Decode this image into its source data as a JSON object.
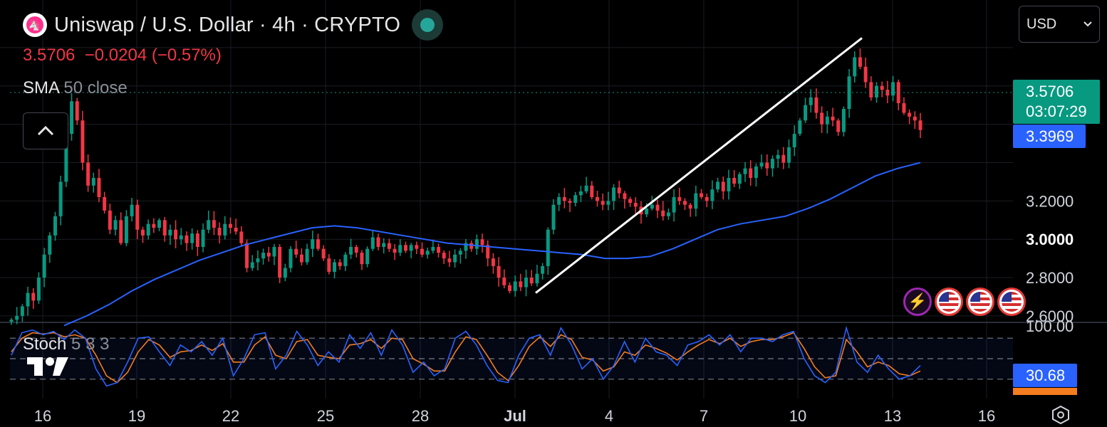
{
  "header": {
    "logo_glyph": "🦄",
    "title": "Uniswap / U.S. Dollar · 4h · CRYPTO",
    "last_price": "3.5706",
    "change": "−0.0204 (−0.57%)",
    "change_color": "#f23645"
  },
  "indicators": {
    "sma_name": "SMA",
    "sma_params": "50 close",
    "stoch_name": "Stoch",
    "stoch_params": "5 3 3"
  },
  "currency_select": {
    "value": "USD"
  },
  "price_tags": {
    "current_price": "3.5706",
    "countdown": "03:07:29",
    "sma_value": "3.3969",
    "stoch_k_value": "30.68"
  },
  "colors": {
    "up": "#089981",
    "down": "#f23645",
    "sma": "#2962ff",
    "stoch_k": "#2962ff",
    "stoch_d": "#f57c1f",
    "trendline": "#ffffff",
    "grid": "#1b1d24"
  },
  "chart_data": {
    "type": "candlestick",
    "title": "Uniswap / U.S. Dollar · 4h · CRYPTO",
    "timeframe": "4h",
    "x_tick_labels": [
      "16",
      "19",
      "22",
      "25",
      "28",
      "Jul",
      "4",
      "7",
      "10",
      "13",
      "16"
    ],
    "y_tick_labels": [
      "3.2000",
      "3.0000",
      "2.8000",
      "2.6000"
    ],
    "y_range": [
      2.57,
      4.1
    ],
    "grid": true,
    "candles_close": [
      2.58,
      2.6,
      2.65,
      2.72,
      2.68,
      2.8,
      2.92,
      3.02,
      3.12,
      3.3,
      3.55,
      3.72,
      3.62,
      3.4,
      3.28,
      3.32,
      3.22,
      3.15,
      3.05,
      3.1,
      2.98,
      3.12,
      3.18,
      3.05,
      3.02,
      3.08,
      3.06,
      3.1,
      3.02,
      3.05,
      3.0,
      3.02,
      2.98,
      3.03,
      2.96,
      3.05,
      3.1,
      3.06,
      3.02,
      3.08,
      3.06,
      3.04,
      2.98,
      2.85,
      2.88,
      2.9,
      2.93,
      2.91,
      2.96,
      2.8,
      2.85,
      2.95,
      2.92,
      2.88,
      2.95,
      3.0,
      2.95,
      2.9,
      2.83,
      2.88,
      2.86,
      2.92,
      2.96,
      2.93,
      2.87,
      2.95,
      3.01,
      2.96,
      2.98,
      2.95,
      2.93,
      2.97,
      2.94,
      2.97,
      2.95,
      2.92,
      2.94,
      2.96,
      2.93,
      2.9,
      2.88,
      2.92,
      2.94,
      2.98,
      2.95,
      3.0,
      2.97,
      2.9,
      2.86,
      2.8,
      2.76,
      2.73,
      2.78,
      2.75,
      2.8,
      2.77,
      2.82,
      2.86,
      3.05,
      3.18,
      3.22,
      3.2,
      3.19,
      3.23,
      3.25,
      3.28,
      3.22,
      3.2,
      3.18,
      3.2,
      3.27,
      3.24,
      3.21,
      3.19,
      3.17,
      3.13,
      3.16,
      3.18,
      3.15,
      3.12,
      3.14,
      3.22,
      3.2,
      3.18,
      3.16,
      3.24,
      3.22,
      3.2,
      3.26,
      3.3,
      3.25,
      3.32,
      3.29,
      3.34,
      3.37,
      3.32,
      3.38,
      3.4,
      3.37,
      3.42,
      3.44,
      3.4,
      3.48,
      3.55,
      3.62,
      3.7,
      3.74,
      3.66,
      3.6,
      3.64,
      3.62,
      3.56,
      3.68,
      3.85,
      3.95,
      3.9,
      3.82,
      3.74,
      3.8,
      3.78,
      3.75,
      3.82,
      3.71,
      3.66,
      3.64,
      3.62,
      3.57
    ],
    "sma50_values": [
      2.55,
      2.6,
      2.66,
      2.73,
      2.79,
      2.84,
      2.89,
      2.93,
      2.97,
      3.0,
      3.03,
      3.06,
      3.07,
      3.06,
      3.04,
      3.02,
      3.0,
      2.98,
      2.97,
      2.96,
      2.95,
      2.94,
      2.93,
      2.92,
      2.9,
      2.9,
      2.91,
      2.95,
      3.0,
      3.05,
      3.08,
      3.1,
      3.12,
      3.16,
      3.21,
      3.27,
      3.33,
      3.37,
      3.4
    ],
    "trendline": {
      "from": {
        "index": 95,
        "value": 2.72
      },
      "to": {
        "index": 158,
        "value": 4.05
      }
    },
    "stoch": {
      "name": "Stoch 5 3 3",
      "range": [
        0,
        100
      ],
      "levels": [
        20,
        50,
        80
      ],
      "last_k": 30.68,
      "k_values": [
        55,
        88,
        92,
        85,
        90,
        78,
        92,
        80,
        35,
        10,
        15,
        45,
        80,
        82,
        60,
        40,
        70,
        60,
        75,
        55,
        80,
        25,
        50,
        85,
        88,
        35,
        55,
        90,
        70,
        40,
        60,
        45,
        85,
        65,
        88,
        55,
        92,
        70,
        30,
        45,
        25,
        35,
        80,
        90,
        70,
        40,
        18,
        15,
        55,
        80,
        85,
        55,
        95,
        70,
        35,
        50,
        20,
        40,
        75,
        45,
        80,
        60,
        55,
        40,
        70,
        75,
        85,
        70,
        85,
        60,
        80,
        80,
        75,
        85,
        90,
        50,
        25,
        15,
        30,
        95,
        45,
        30,
        55,
        35,
        20,
        25,
        40
      ],
      "d_values": [
        60,
        80,
        88,
        86,
        88,
        82,
        85,
        80,
        55,
        25,
        15,
        30,
        60,
        78,
        70,
        52,
        60,
        62,
        70,
        62,
        72,
        45,
        45,
        70,
        82,
        55,
        50,
        75,
        78,
        55,
        52,
        50,
        70,
        72,
        78,
        65,
        80,
        78,
        50,
        42,
        32,
        32,
        60,
        82,
        78,
        55,
        30,
        18,
        40,
        68,
        82,
        68,
        85,
        78,
        52,
        48,
        32,
        38,
        60,
        55,
        70,
        65,
        58,
        48,
        60,
        70,
        78,
        72,
        80,
        68,
        75,
        78,
        78,
        82,
        88,
        65,
        38,
        22,
        25,
        78,
        60,
        38,
        45,
        40,
        28,
        25,
        32
      ]
    }
  }
}
